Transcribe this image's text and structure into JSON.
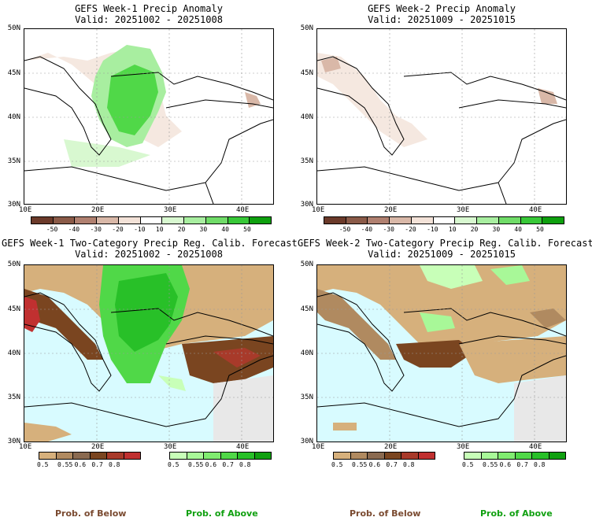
{
  "panels": [
    {
      "title": "GEFS Week-1 Precip Anomaly",
      "valid": "Valid: 20251002 - 20251008"
    },
    {
      "title": "GEFS Week-2 Precip Anomaly",
      "valid": "Valid: 20251009 - 20251015"
    },
    {
      "title": "GEFS Week-1 Two-Category Precip Reg. Calib. Forecast",
      "valid": "Valid: 20251002 - 20251008"
    },
    {
      "title": "GEFS Week-2 Two-Category Precip Reg. Calib. Forecast",
      "valid": "Valid: 20251009 - 20251015"
    }
  ],
  "lat_labels": [
    "50N",
    "45N",
    "40N",
    "35N",
    "30N"
  ],
  "lon_labels": [
    "10E",
    "20E",
    "30E",
    "40E"
  ],
  "anomaly_scale": {
    "labels": [
      "-50",
      "-40",
      "-30",
      "-20",
      "-10",
      "10",
      "20",
      "30",
      "40",
      "50"
    ],
    "colors": [
      "#6b3a2a",
      "#8a5a48",
      "#b08070",
      "#d9b8a8",
      "#f3e2d8",
      "#ffffff",
      "#d8f8d0",
      "#a8eea0",
      "#70dc68",
      "#38c838",
      "#0ea00e"
    ]
  },
  "below_scale": {
    "labels": [
      "0.5",
      "0.55",
      "0.6",
      "0.7",
      "0.8"
    ],
    "colors": [
      "#d6b07c",
      "#b08a60",
      "#8a6a50",
      "#7a4520",
      "#a83a2a",
      "#c03030"
    ]
  },
  "above_scale": {
    "labels": [
      "0.5",
      "0.55",
      "0.6",
      "0.7",
      "0.8"
    ],
    "colors": [
      "#c8ffb8",
      "#a8f898",
      "#80ec70",
      "#50d848",
      "#28c028",
      "#10a010"
    ]
  },
  "legend": {
    "below": "Prob. of Below",
    "above": "Prob. of Above"
  },
  "colors": {
    "below_text": "#7a4a30",
    "above_text": "#10a010",
    "sea": "#d8fbff",
    "nodata": "#e8e8e8"
  }
}
